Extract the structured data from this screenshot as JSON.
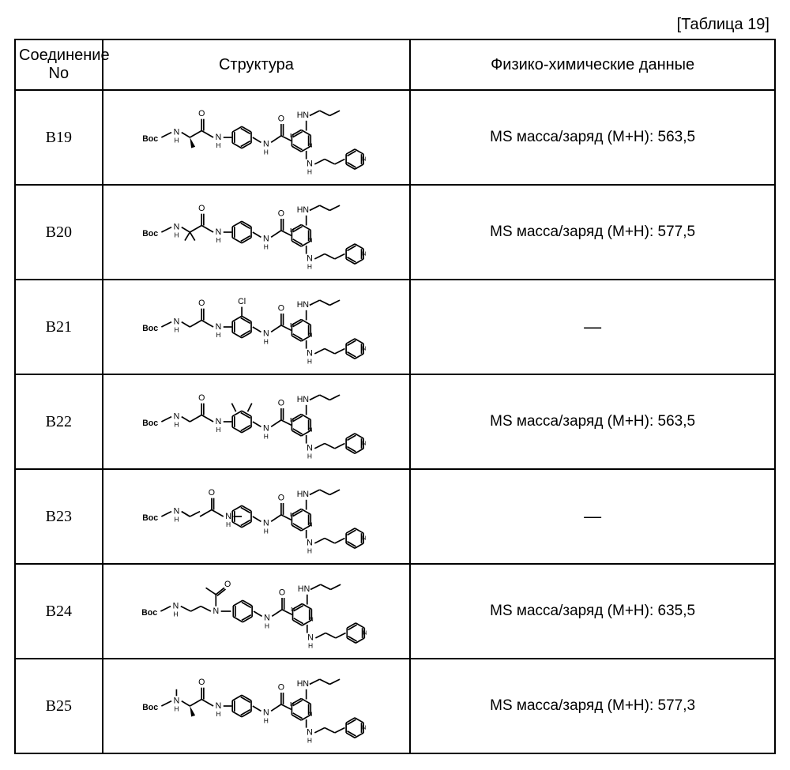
{
  "caption": "[Таблица 19]",
  "headers": {
    "id": "Соединение No",
    "structure": "Структура",
    "data": "Физико-химические данные"
  },
  "rows": [
    {
      "id": "B19",
      "data": "MS масса/заряд (M+H): 563,5",
      "variant": "v1"
    },
    {
      "id": "B20",
      "data": "MS масса/заряд (M+H): 577,5",
      "variant": "v2"
    },
    {
      "id": "B21",
      "data": "—",
      "variant": "v3"
    },
    {
      "id": "B22",
      "data": "MS масса/заряд (M+H): 563,5",
      "variant": "v4"
    },
    {
      "id": "B23",
      "data": "—",
      "variant": "v5"
    },
    {
      "id": "B24",
      "data": "MS масса/заряд (M+H): 635,5",
      "variant": "v6"
    },
    {
      "id": "B25",
      "data": "MS масса/заряд (M+H): 577,3",
      "variant": "v7"
    }
  ],
  "mol": {
    "boc_label": "Boc",
    "n_label": "N",
    "h_label": "H",
    "hn_label": "HN",
    "nh_label": "NH",
    "o_label": "O",
    "cl_label": "Cl",
    "stroke": "#000000",
    "stroke_width": 1.6,
    "font_family": "Arial",
    "font_size_label": 10,
    "font_size_small": 8
  }
}
